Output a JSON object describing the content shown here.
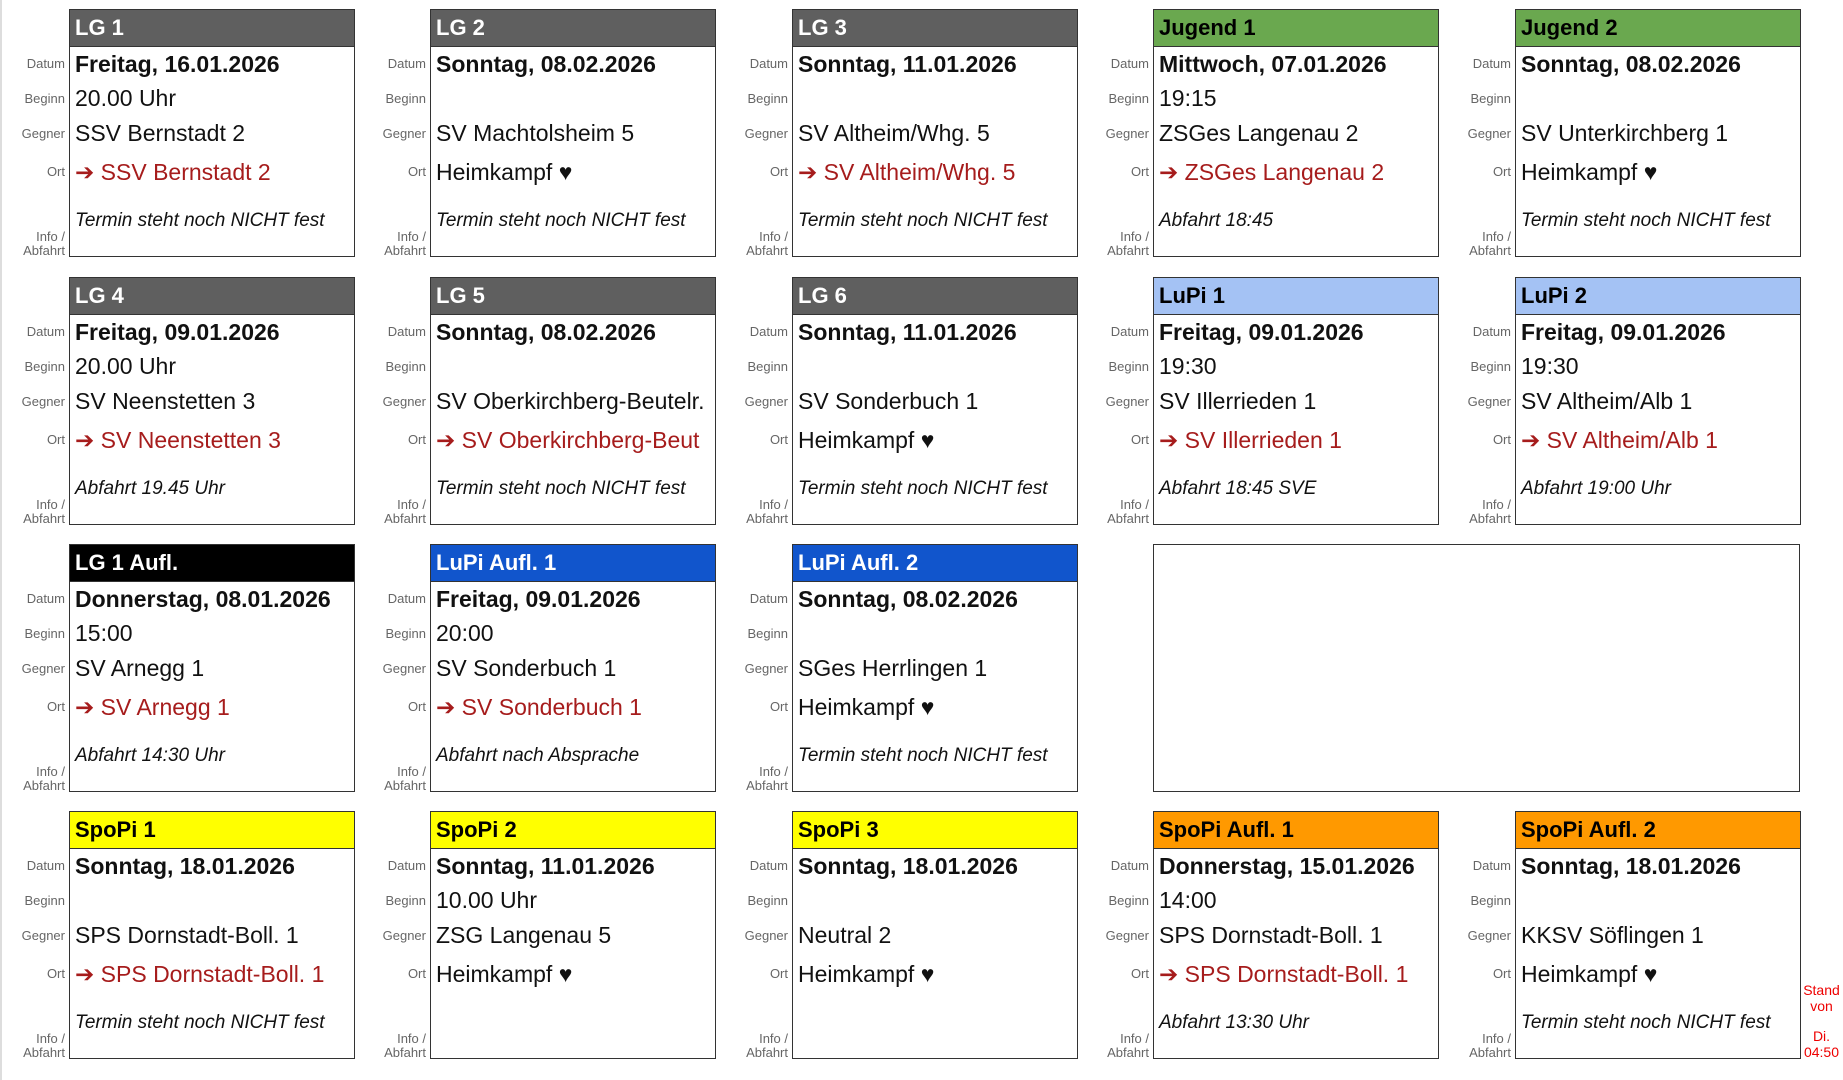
{
  "labels": {
    "date": "Datum",
    "start": "Beginn",
    "opponent": "Gegner",
    "location": "Ort",
    "info1": "Info /",
    "info2": "Abfahrt"
  },
  "colors": {
    "gray": "#5f5f5f",
    "green": "#6aa84f",
    "lightblue": "#a4c2f4",
    "black": "#000000",
    "blue": "#1155cc",
    "yellow": "#ffff00",
    "orange": "#ff9900",
    "away_text": "#a61c1c",
    "stand_text": "#ee0000"
  },
  "cards": [
    {
      "title": "LG 1",
      "color": "gray",
      "date": "Freitag, 16.01.2026",
      "time": "20.00 Uhr",
      "opponent": "SSV Bernstadt 2",
      "location": "➔ SSV Bernstadt 2",
      "away": true,
      "info": "Termin steht noch NICHT fest"
    },
    {
      "title": "LG 2",
      "color": "gray",
      "date": "Sonntag, 08.02.2026",
      "time": "",
      "opponent": "SV Machtolsheim 5",
      "location": "Heimkampf ♥",
      "away": false,
      "info": "Termin steht noch NICHT fest"
    },
    {
      "title": "LG 3",
      "color": "gray",
      "date": "Sonntag, 11.01.2026",
      "time": "",
      "opponent": "SV Altheim/Whg. 5",
      "location": "➔ SV Altheim/Whg. 5",
      "away": true,
      "info": "Termin steht noch NICHT fest"
    },
    {
      "title": "Jugend 1",
      "color": "green",
      "date": "Mittwoch, 07.01.2026",
      "time": "19:15",
      "opponent": "ZSGes Langenau 2",
      "location": "➔ ZSGes Langenau 2",
      "away": true,
      "info": "Abfahrt 18:45"
    },
    {
      "title": "Jugend 2",
      "color": "green",
      "date": "Sonntag, 08.02.2026",
      "time": "",
      "opponent": "SV Unterkirchberg 1",
      "location": "Heimkampf ♥",
      "away": false,
      "info": "Termin steht noch NICHT fest"
    },
    {
      "title": "LG 4",
      "color": "gray",
      "date": "Freitag, 09.01.2026",
      "time": "20.00 Uhr",
      "opponent": "SV Neenstetten 3",
      "location": "➔ SV Neenstetten 3",
      "away": true,
      "info": "Abfahrt 19.45 Uhr"
    },
    {
      "title": "LG 5",
      "color": "gray",
      "date": "Sonntag, 08.02.2026",
      "time": "",
      "opponent": "SV Oberkirchberg-Beutelr.",
      "location": "➔ SV Oberkirchberg-Beut",
      "away": true,
      "info": "Termin steht noch NICHT fest"
    },
    {
      "title": "LG 6",
      "color": "gray",
      "date": "Sonntag, 11.01.2026",
      "time": "",
      "opponent": "SV Sonderbuch 1",
      "location": "Heimkampf ♥",
      "away": false,
      "info": "Termin steht noch NICHT fest"
    },
    {
      "title": "LuPi 1",
      "color": "lightblue",
      "date": "Freitag, 09.01.2026",
      "time": "19:30",
      "opponent": "SV Illerrieden 1",
      "location": "➔ SV Illerrieden 1",
      "away": true,
      "info": "Abfahrt 18:45 SVE"
    },
    {
      "title": "LuPi 2",
      "color": "lightblue",
      "date": "Freitag, 09.01.2026",
      "time": "19:30",
      "opponent": "SV Altheim/Alb 1",
      "location": "➔ SV Altheim/Alb 1",
      "away": true,
      "info": "Abfahrt 19:00 Uhr"
    },
    {
      "title": "LG 1 Aufl.",
      "color": "black",
      "date": "Donnerstag, 08.01.2026",
      "time": "15:00",
      "opponent": "SV Arnegg 1",
      "location": "➔ SV Arnegg 1",
      "away": true,
      "info": "Abfahrt 14:30 Uhr"
    },
    {
      "title": "LuPi Aufl. 1",
      "color": "blue",
      "date": "Freitag, 09.01.2026",
      "time": "20:00",
      "opponent": "SV Sonderbuch 1",
      "location": "➔ SV Sonderbuch 1",
      "away": true,
      "info": "Abfahrt nach Absprache"
    },
    {
      "title": "LuPi Aufl. 2",
      "color": "blue",
      "date": "Sonntag, 08.02.2026",
      "time": "",
      "opponent": "SGes Herrlingen 1",
      "location": "Heimkampf ♥",
      "away": false,
      "info": "Termin steht noch NICHT fest"
    },
    {
      "title": "SpoPi 1",
      "color": "yellow",
      "date": "Sonntag, 18.01.2026",
      "time": "",
      "opponent": "SPS Dornstadt-Boll. 1",
      "location": "➔ SPS Dornstadt-Boll. 1",
      "away": true,
      "info": "Termin steht noch NICHT fest"
    },
    {
      "title": "SpoPi 2",
      "color": "yellow",
      "date": "Sonntag, 11.01.2026",
      "time": "10.00 Uhr",
      "opponent": "ZSG Langenau 5",
      "location": "Heimkampf ♥",
      "away": false,
      "info": ""
    },
    {
      "title": "SpoPi 3",
      "color": "yellow",
      "date": "Sonntag, 18.01.2026",
      "time": "",
      "opponent": "Neutral 2",
      "location": "Heimkampf ♥",
      "away": false,
      "info": ""
    },
    {
      "title": "SpoPi Aufl. 1",
      "color": "orange",
      "date": "Donnerstag, 15.01.2026",
      "time": "14:00",
      "opponent": "SPS Dornstadt-Boll. 1",
      "location": "➔ SPS Dornstadt-Boll. 1",
      "away": true,
      "info": "Abfahrt 13:30 Uhr"
    },
    {
      "title": "SpoPi Aufl. 2",
      "color": "orange",
      "date": "Sonntag, 18.01.2026",
      "time": "",
      "opponent": "KKSV Söflingen 1",
      "location": "Heimkampf ♥",
      "away": false,
      "info": "Termin steht noch NICHT fest"
    }
  ],
  "stand": {
    "line1": "Stand",
    "line2": "von",
    "line3": "Di.",
    "line4": "04:50"
  }
}
